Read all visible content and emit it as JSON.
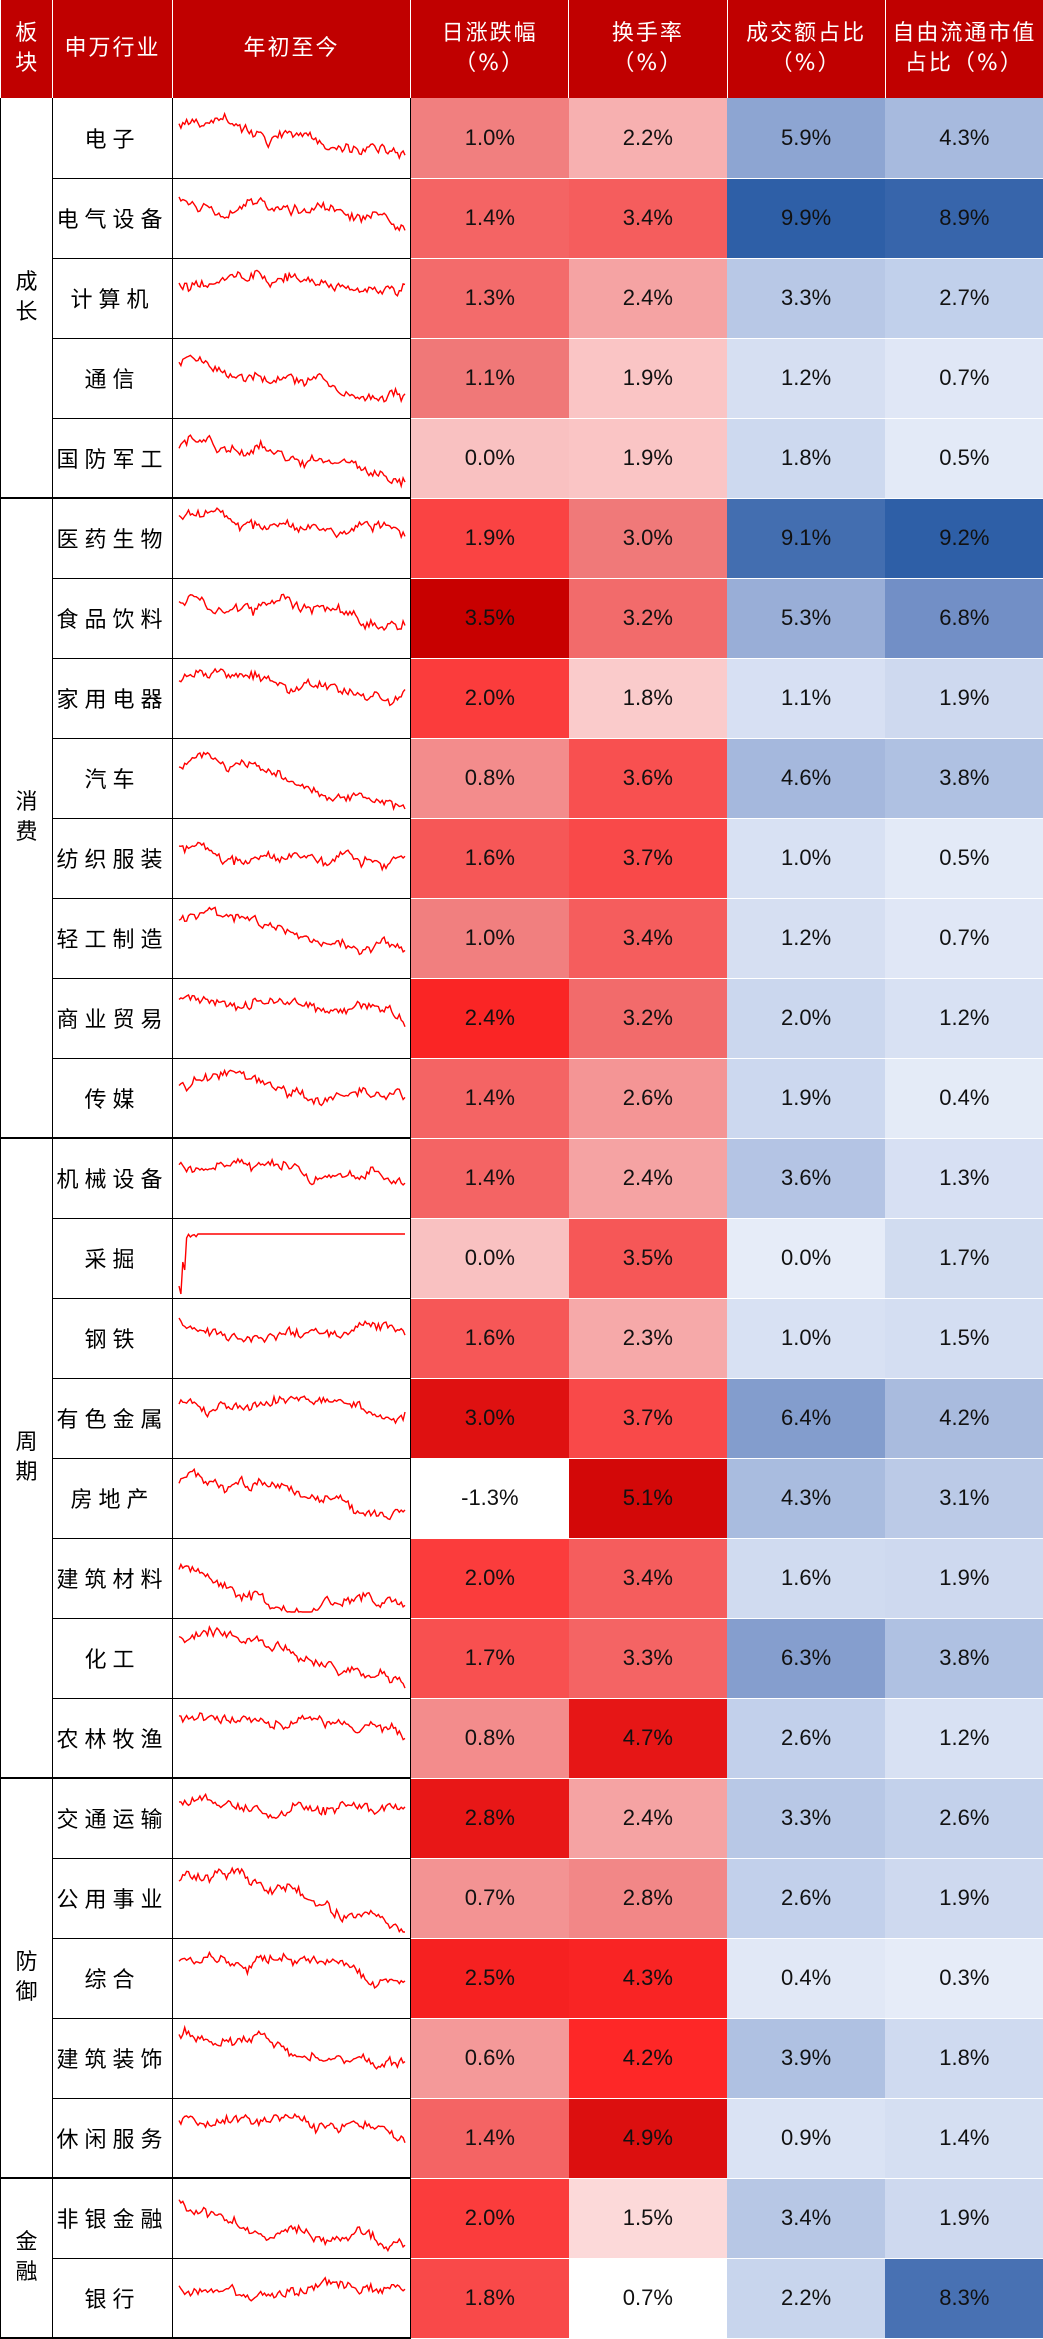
{
  "header": {
    "sector": "板块",
    "industry": "申万行业",
    "ytd": "年初至今",
    "daily_change": [
      "日涨跌幅",
      "（%）"
    ],
    "turnover": [
      "换手率",
      "（%）"
    ],
    "volume_share": [
      "成交额占比",
      "（%）"
    ],
    "float_cap_share": [
      "自由流通市值",
      "占比（%）"
    ]
  },
  "colors": {
    "header_bg": "#c00000",
    "red_high": "#ff0000",
    "blue_high": "#2e5fa7",
    "sparkline": "#ff0000"
  },
  "chart_data": {
    "type": "table",
    "columns": [
      "板块",
      "申万行业",
      "年初至今",
      "日涨跌幅（%）",
      "换手率（%）",
      "成交额占比（%）",
      "自由流通市值占比（%）"
    ],
    "groups": [
      {
        "name": "成长",
        "rows": [
          {
            "industry": "电子",
            "daily": "1.0%",
            "turnover": "2.2%",
            "volume": "5.9%",
            "floatcap": "4.3%"
          },
          {
            "industry": "电气设备",
            "daily": "1.4%",
            "turnover": "3.4%",
            "volume": "9.9%",
            "floatcap": "8.9%"
          },
          {
            "industry": "计算机",
            "daily": "1.3%",
            "turnover": "2.4%",
            "volume": "3.3%",
            "floatcap": "2.7%"
          },
          {
            "industry": "通信",
            "daily": "1.1%",
            "turnover": "1.9%",
            "volume": "1.2%",
            "floatcap": "0.7%"
          },
          {
            "industry": "国防军工",
            "daily": "0.0%",
            "turnover": "1.9%",
            "volume": "1.8%",
            "floatcap": "0.5%"
          }
        ]
      },
      {
        "name": "消费",
        "rows": [
          {
            "industry": "医药生物",
            "daily": "1.9%",
            "turnover": "3.0%",
            "volume": "9.1%",
            "floatcap": "9.2%"
          },
          {
            "industry": "食品饮料",
            "daily": "3.5%",
            "turnover": "3.2%",
            "volume": "5.3%",
            "floatcap": "6.8%"
          },
          {
            "industry": "家用电器",
            "daily": "2.0%",
            "turnover": "1.8%",
            "volume": "1.1%",
            "floatcap": "1.9%"
          },
          {
            "industry": "汽车",
            "daily": "0.8%",
            "turnover": "3.6%",
            "volume": "4.6%",
            "floatcap": "3.8%"
          },
          {
            "industry": "纺织服装",
            "daily": "1.6%",
            "turnover": "3.7%",
            "volume": "1.0%",
            "floatcap": "0.5%"
          },
          {
            "industry": "轻工制造",
            "daily": "1.0%",
            "turnover": "3.4%",
            "volume": "1.2%",
            "floatcap": "0.7%"
          },
          {
            "industry": "商业贸易",
            "daily": "2.4%",
            "turnover": "3.2%",
            "volume": "2.0%",
            "floatcap": "1.2%"
          },
          {
            "industry": "传媒",
            "daily": "1.4%",
            "turnover": "2.6%",
            "volume": "1.9%",
            "floatcap": "0.4%"
          }
        ]
      },
      {
        "name": "周期",
        "rows": [
          {
            "industry": "机械设备",
            "daily": "1.4%",
            "turnover": "2.4%",
            "volume": "3.6%",
            "floatcap": "1.3%"
          },
          {
            "industry": "采掘",
            "daily": "0.0%",
            "turnover": "3.5%",
            "volume": "0.0%",
            "floatcap": "1.7%"
          },
          {
            "industry": "钢铁",
            "daily": "1.6%",
            "turnover": "2.3%",
            "volume": "1.0%",
            "floatcap": "1.5%"
          },
          {
            "industry": "有色金属",
            "daily": "3.0%",
            "turnover": "3.7%",
            "volume": "6.4%",
            "floatcap": "4.2%"
          },
          {
            "industry": "房地产",
            "daily": "-1.3%",
            "turnover": "5.1%",
            "volume": "4.3%",
            "floatcap": "3.1%"
          },
          {
            "industry": "建筑材料",
            "daily": "2.0%",
            "turnover": "3.4%",
            "volume": "1.6%",
            "floatcap": "1.9%"
          },
          {
            "industry": "化工",
            "daily": "1.7%",
            "turnover": "3.3%",
            "volume": "6.3%",
            "floatcap": "3.8%"
          },
          {
            "industry": "农林牧渔",
            "daily": "0.8%",
            "turnover": "4.7%",
            "volume": "2.6%",
            "floatcap": "1.2%"
          }
        ]
      },
      {
        "name": "防御",
        "rows": [
          {
            "industry": "交通运输",
            "daily": "2.8%",
            "turnover": "2.4%",
            "volume": "3.3%",
            "floatcap": "2.6%"
          },
          {
            "industry": "公用事业",
            "daily": "0.7%",
            "turnover": "2.8%",
            "volume": "2.6%",
            "floatcap": "1.9%"
          },
          {
            "industry": "综合",
            "daily": "2.5%",
            "turnover": "4.3%",
            "volume": "0.4%",
            "floatcap": "0.3%"
          },
          {
            "industry": "建筑装饰",
            "daily": "0.6%",
            "turnover": "4.2%",
            "volume": "3.9%",
            "floatcap": "1.8%"
          },
          {
            "industry": "休闲服务",
            "daily": "1.4%",
            "turnover": "4.9%",
            "volume": "0.9%",
            "floatcap": "1.4%"
          }
        ]
      },
      {
        "name": "金融",
        "rows": [
          {
            "industry": "非银金融",
            "daily": "2.0%",
            "turnover": "1.5%",
            "volume": "3.4%",
            "floatcap": "1.9%"
          },
          {
            "industry": "银行",
            "daily": "1.8%",
            "turnover": "0.7%",
            "volume": "2.2%",
            "floatcap": "8.3%"
          }
        ]
      }
    ]
  }
}
